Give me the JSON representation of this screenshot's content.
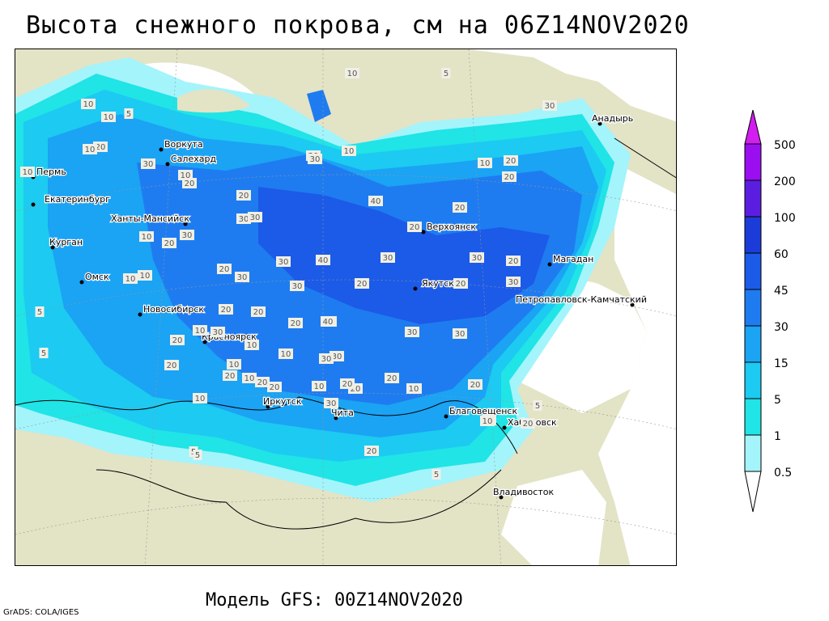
{
  "title": "Высота снежного покрова, см на 06Z14NOV2020",
  "footer": "Модель GFS: 00Z14NOV2020",
  "credit": "GrADS: COLA/IGES",
  "colors": {
    "land": "#e3e3c6",
    "sea": "#ffffff",
    "snow_0_5": "#a4f4fb",
    "snow_1": "#20e4e6",
    "snow_5": "#1ccaf2",
    "snow_15": "#1ba3f4",
    "snow_30": "#1e7cf0",
    "snow_45": "#1c5ae8",
    "snow_60": "#1c3cd9",
    "snow_100": "#5b1ee0",
    "snow_200": "#9a0ef0",
    "snow_500": "#d21ef0"
  },
  "legend": {
    "labels": [
      "500",
      "200",
      "100",
      "60",
      "45",
      "30",
      "15",
      "5",
      "1",
      "0.5"
    ]
  },
  "cities": [
    {
      "name": "Анадырь"
    },
    {
      "name": "Воркута"
    },
    {
      "name": "Салехард"
    },
    {
      "name": "Пермь"
    },
    {
      "name": "Екатеринбург"
    },
    {
      "name": "Ханты-Мансийск"
    },
    {
      "name": "Курган"
    },
    {
      "name": "Омск"
    },
    {
      "name": "Новосибирск"
    },
    {
      "name": "Красноярск"
    },
    {
      "name": "Иркутск"
    },
    {
      "name": "Чита"
    },
    {
      "name": "Верхоянск"
    },
    {
      "name": "Якутск"
    },
    {
      "name": "Магадан"
    },
    {
      "name": "Петропавловск-Камчатский"
    },
    {
      "name": "Благовещенск"
    },
    {
      "name": "Хабаровск"
    },
    {
      "name": "Владивосток"
    }
  ],
  "contour_labels": [
    "10",
    "5",
    "5",
    "30",
    "10",
    "10",
    "20",
    "10",
    "30",
    "10",
    "20",
    "20",
    "30",
    "10",
    "10",
    "20",
    "20",
    "30",
    "30",
    "30",
    "40",
    "20",
    "20",
    "10",
    "20",
    "30",
    "20",
    "30",
    "10",
    "20",
    "10",
    "30",
    "20",
    "30",
    "20",
    "40",
    "20",
    "30",
    "30",
    "20",
    "30",
    "30",
    "40",
    "20",
    "30",
    "20",
    "30",
    "20",
    "20",
    "30",
    "30",
    "20",
    "10",
    "20",
    "20",
    "30",
    "10",
    "20",
    "20",
    "10",
    "5",
    "10",
    "5",
    "10",
    "5",
    "10",
    "5",
    "5",
    "10",
    "20",
    "10",
    "10",
    "5",
    "20",
    "10",
    "20",
    "30",
    "10",
    "10"
  ]
}
